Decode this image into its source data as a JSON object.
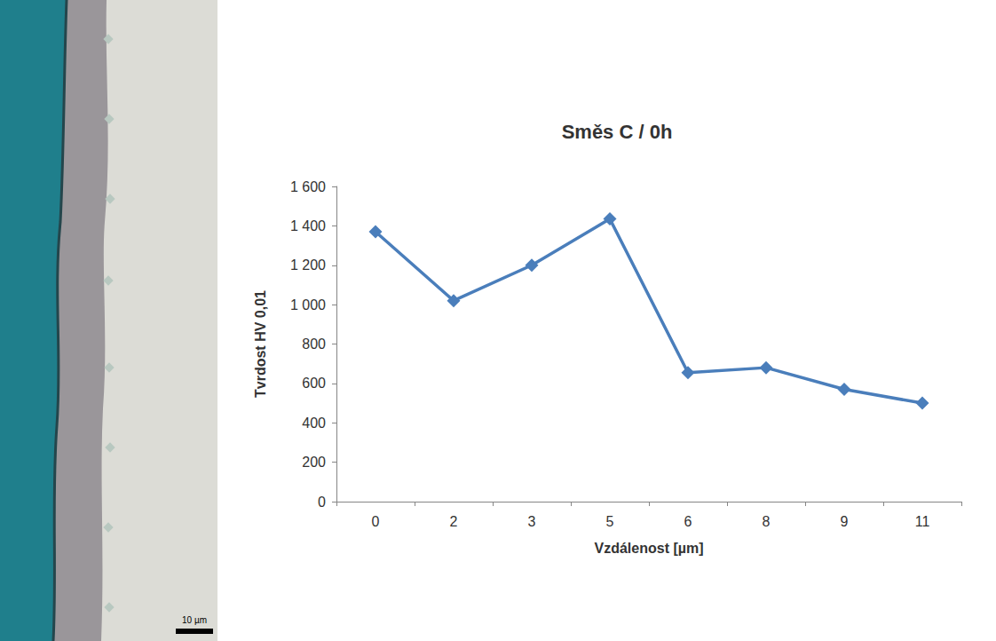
{
  "chart_data": {
    "type": "line",
    "title": "Směs C / 0h",
    "x_label": "Vzdálenost [µm]",
    "y_label": "Tvrdost HV 0,01",
    "categories": [
      "0",
      "2",
      "3",
      "5",
      "6",
      "8",
      "9",
      "11"
    ],
    "values": [
      1370,
      1020,
      1200,
      1435,
      655,
      680,
      570,
      500
    ],
    "color": "#4a7ebb",
    "marker": "diamond",
    "grid": false,
    "ylim": [
      0,
      1600
    ],
    "yticks": [
      0,
      200,
      400,
      600,
      800,
      {
        "value": 1000,
        "label": "1 000"
      },
      {
        "value": 1200,
        "label": "1 200"
      },
      {
        "value": 1400,
        "label": "1 400"
      },
      {
        "value": 1600,
        "label": "1 600"
      }
    ]
  },
  "micrograph": {
    "scale_bar": "10 µm"
  }
}
